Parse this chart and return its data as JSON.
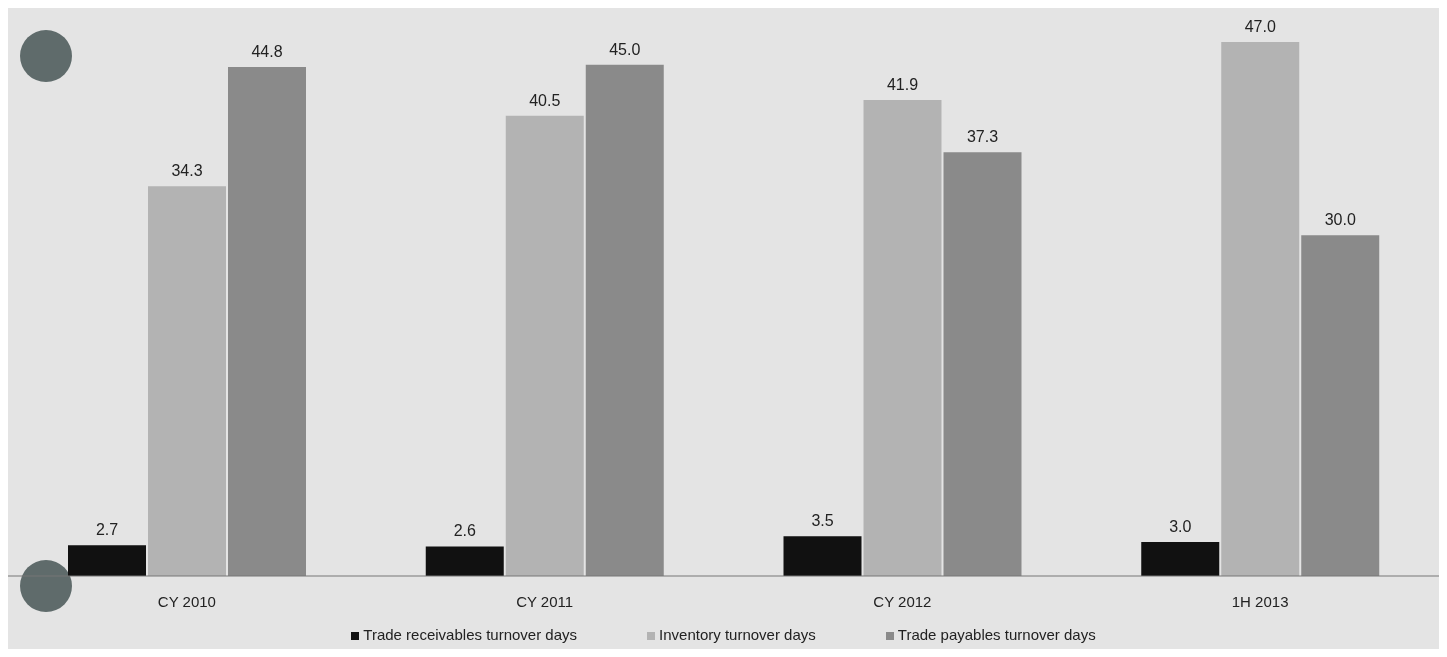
{
  "chart_data": {
    "type": "bar",
    "categories": [
      "CY 2010",
      "CY 2011",
      "CY 2012",
      "1H 2013"
    ],
    "series": [
      {
        "name": "Trade receivables turnover days",
        "color": "#111111",
        "values": [
          2.7,
          2.6,
          3.5,
          3.0
        ],
        "value_labels": [
          "2.7",
          "2.6",
          "3.5",
          "3.0"
        ]
      },
      {
        "name": "Inventory turnover days",
        "color": "#b3b3b3",
        "values": [
          34.3,
          40.5,
          41.9,
          47.0
        ],
        "value_labels": [
          "34.3",
          "40.5",
          "41.9",
          "47.0"
        ]
      },
      {
        "name": "Trade payables turnover days",
        "color": "#8a8a8a",
        "values": [
          44.8,
          45.0,
          37.3,
          30.0
        ],
        "value_labels": [
          "44.8",
          "45.0",
          "37.3",
          "30.0"
        ]
      }
    ],
    "legend": "bottom",
    "grid": false
  }
}
